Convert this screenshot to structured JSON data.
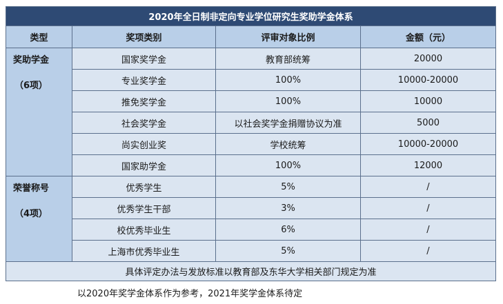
{
  "table": {
    "title": "2020年全日制非定向专业学位研究生奖助学金体系",
    "headers": [
      "类型",
      "奖项类别",
      "评审对象比例",
      "金额（元）"
    ],
    "categories": [
      {
        "name": "奖助学金",
        "count": "（6项）",
        "rows": [
          {
            "award": "国家奖学金",
            "ratio": "教育部统筹",
            "amount": "20000"
          },
          {
            "award": "专业奖学金",
            "ratio": "100%",
            "amount": "10000-20000"
          },
          {
            "award": "推免奖学金",
            "ratio": "100%",
            "amount": "10000"
          },
          {
            "award": "社会奖学金",
            "ratio": "以社会奖学金捐赠协议为准",
            "amount": "5000"
          },
          {
            "award": "尚实创业奖",
            "ratio": "学校统筹",
            "amount": "10000-20000"
          },
          {
            "award": "国家助学金",
            "ratio": "100%",
            "amount": "12000"
          }
        ]
      },
      {
        "name": "荣誉称号",
        "count": "（4项）",
        "rows": [
          {
            "award": "优秀学生",
            "ratio": "5%",
            "amount": "/"
          },
          {
            "award": "优秀学生干部",
            "ratio": "3%",
            "amount": "/"
          },
          {
            "award": "校优秀毕业生",
            "ratio": "6%",
            "amount": "/"
          },
          {
            "award": "上海市优秀毕业生",
            "ratio": "5%",
            "amount": "/"
          }
        ]
      }
    ],
    "footer": "具体评定办法与发放标准以教育部及东华大学相关部门规定为准"
  },
  "caption": "以2020年奖学金体系作为参考，2021年奖学金体系待定",
  "colors": {
    "title_bg": "#2e4a74",
    "header_bg": "#b9cfe8",
    "cell_bg": "#dbe5f1",
    "border": "#5a6f8c"
  }
}
